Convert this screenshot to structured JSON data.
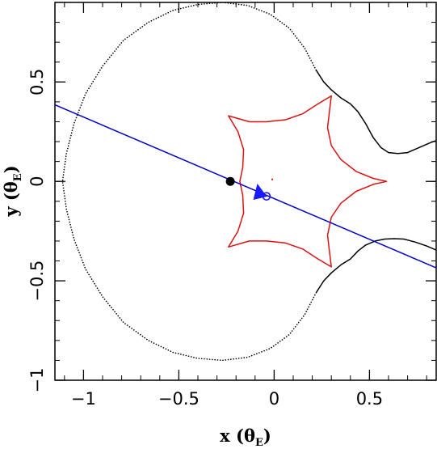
{
  "chart_data": {
    "type": "line",
    "xlabel": {
      "prefix": "x (",
      "symbol": "θ",
      "subscript": "E",
      "suffix": ")"
    },
    "ylabel": {
      "prefix": "y (",
      "symbol": "θ",
      "subscript": "E",
      "suffix": ")"
    },
    "xlim": [
      -1.15,
      0.85
    ],
    "ylim": [
      -1.0,
      0.9
    ],
    "x_ticks": [
      -1,
      -0.5,
      0,
      0.5
    ],
    "x_tick_labels": [
      "−1",
      "−0.5",
      "0",
      "0.5"
    ],
    "y_ticks": [
      -1,
      -0.5,
      0,
      0.5
    ],
    "y_tick_labels": [
      "−1",
      "−0.5",
      "0",
      "0.5"
    ],
    "x_minor_step": 0.1,
    "y_minor_step": 0.1,
    "grid": false,
    "colors": {
      "critical": "#000000",
      "caustic": "#dd1111",
      "trajectory": "#0000cc",
      "source": "#1a1aff"
    },
    "series": [
      {
        "style": "dotted",
        "color": "#000000",
        "points": [
          [
            0.22,
            0.56
          ],
          [
            0.16,
            0.67
          ],
          [
            0.08,
            0.77
          ],
          [
            -0.02,
            0.84
          ],
          [
            -0.14,
            0.885
          ],
          [
            -0.27,
            0.9
          ],
          [
            -0.4,
            0.89
          ],
          [
            -0.53,
            0.86
          ],
          [
            -0.66,
            0.8
          ],
          [
            -0.79,
            0.71
          ],
          [
            -0.9,
            0.58
          ],
          [
            -0.99,
            0.44
          ],
          [
            -1.05,
            0.29
          ],
          [
            -1.09,
            0.14
          ],
          [
            -1.11,
            0.0
          ],
          [
            -1.09,
            -0.14
          ],
          [
            -1.05,
            -0.29
          ],
          [
            -0.99,
            -0.44
          ],
          [
            -0.9,
            -0.58
          ],
          [
            -0.79,
            -0.71
          ],
          [
            -0.66,
            -0.8
          ],
          [
            -0.53,
            -0.86
          ],
          [
            -0.4,
            -0.89
          ],
          [
            -0.27,
            -0.9
          ],
          [
            -0.14,
            -0.885
          ],
          [
            -0.02,
            -0.84
          ],
          [
            0.08,
            -0.77
          ],
          [
            0.16,
            -0.67
          ],
          [
            0.22,
            -0.56
          ]
        ]
      },
      {
        "style": "solid",
        "color": "#000000",
        "points": [
          [
            0.22,
            0.56
          ],
          [
            0.26,
            0.5
          ],
          [
            0.3,
            0.46
          ],
          [
            0.35,
            0.42
          ],
          [
            0.4,
            0.39
          ],
          [
            0.44,
            0.35
          ],
          [
            0.48,
            0.29
          ],
          [
            0.52,
            0.22
          ],
          [
            0.56,
            0.17
          ],
          [
            0.6,
            0.145
          ],
          [
            0.65,
            0.14
          ],
          [
            0.7,
            0.145
          ],
          [
            0.76,
            0.17
          ],
          [
            0.82,
            0.195
          ],
          [
            0.85,
            0.205
          ]
        ]
      },
      {
        "style": "solid",
        "color": "#000000",
        "points": [
          [
            0.22,
            -0.56
          ],
          [
            0.26,
            -0.5
          ],
          [
            0.3,
            -0.46
          ],
          [
            0.35,
            -0.42
          ],
          [
            0.4,
            -0.39
          ],
          [
            0.44,
            -0.35
          ],
          [
            0.48,
            -0.32
          ],
          [
            0.53,
            -0.3
          ],
          [
            0.58,
            -0.29
          ],
          [
            0.63,
            -0.288
          ],
          [
            0.68,
            -0.29
          ],
          [
            0.74,
            -0.305
          ],
          [
            0.8,
            -0.325
          ],
          [
            0.85,
            -0.345
          ]
        ]
      },
      {
        "style": "solid",
        "color": "#dd1111",
        "points": [
          [
            0.3,
            0.43
          ],
          [
            0.29,
            0.35
          ],
          [
            0.28,
            0.27
          ],
          [
            0.3,
            0.18
          ],
          [
            0.35,
            0.11
          ],
          [
            0.43,
            0.05
          ],
          [
            0.52,
            0.015
          ],
          [
            0.59,
            0.0
          ],
          [
            0.52,
            -0.015
          ],
          [
            0.43,
            -0.05
          ],
          [
            0.35,
            -0.11
          ],
          [
            0.3,
            -0.18
          ],
          [
            0.28,
            -0.27
          ],
          [
            0.29,
            -0.35
          ],
          [
            0.3,
            -0.43
          ],
          [
            0.23,
            -0.39
          ],
          [
            0.15,
            -0.34
          ],
          [
            0.06,
            -0.31
          ],
          [
            -0.04,
            -0.3
          ],
          [
            -0.13,
            -0.3
          ],
          [
            -0.24,
            -0.33
          ],
          [
            -0.19,
            -0.25
          ],
          [
            -0.16,
            -0.16
          ],
          [
            -0.165,
            -0.07
          ],
          [
            -0.18,
            0.0
          ],
          [
            -0.165,
            0.07
          ],
          [
            -0.16,
            0.16
          ],
          [
            -0.19,
            0.25
          ],
          [
            -0.24,
            0.33
          ],
          [
            -0.13,
            0.3
          ],
          [
            -0.04,
            0.3
          ],
          [
            0.06,
            0.31
          ],
          [
            0.15,
            0.34
          ],
          [
            0.23,
            0.39
          ],
          [
            0.3,
            0.43
          ]
        ]
      },
      {
        "style": "solid",
        "color": "#0000cc",
        "points": [
          [
            -1.15,
            0.385
          ],
          [
            0.85,
            -0.435
          ]
        ]
      }
    ],
    "markers": [
      {
        "shape": "filled-circle",
        "x": -0.23,
        "y": 0.0,
        "color": "#000000"
      },
      {
        "shape": "open-circle",
        "x": -0.04,
        "y": -0.075,
        "color": "#1a1aff"
      },
      {
        "shape": "arrow-head",
        "x": -0.08,
        "y": -0.06,
        "color": "#1a1aff"
      },
      {
        "shape": "dot",
        "x": -0.01,
        "y": 0.01,
        "color": "#dd1111"
      }
    ]
  }
}
